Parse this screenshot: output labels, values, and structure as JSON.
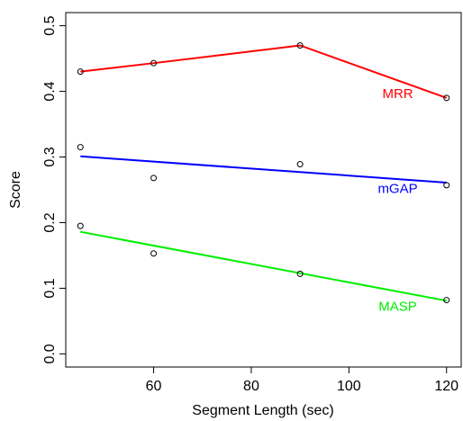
{
  "chart_data": {
    "type": "scatter",
    "title": "",
    "xlabel": "Segment Length (sec)",
    "ylabel": "Score",
    "xlim": [
      42,
      123
    ],
    "ylim": [
      -0.02,
      0.52
    ],
    "x_ticks": [
      60,
      80,
      100,
      120
    ],
    "y_ticks": [
      0.0,
      0.1,
      0.2,
      0.3,
      0.4,
      0.5
    ],
    "x_tick_labels": [
      "60",
      "80",
      "100",
      "120"
    ],
    "y_tick_labels": [
      "0.0",
      "0.1",
      "0.2",
      "0.3",
      "0.4",
      "0.5"
    ],
    "grid": false,
    "series": [
      {
        "name": "MRR",
        "color": "#ff0000",
        "line": "connect",
        "points": [
          {
            "x": 45,
            "y": 0.43
          },
          {
            "x": 60,
            "y": 0.443
          },
          {
            "x": 90,
            "y": 0.47
          },
          {
            "x": 120,
            "y": 0.39
          }
        ],
        "label_at": {
          "x": 110,
          "y": 0.39
        }
      },
      {
        "name": "mGAP",
        "color": "#0000ff",
        "line": "fit",
        "fit": {
          "from": {
            "x": 45,
            "y": 0.301
          },
          "to": {
            "x": 120,
            "y": 0.261
          }
        },
        "points": [
          {
            "x": 45,
            "y": 0.315
          },
          {
            "x": 60,
            "y": 0.268
          },
          {
            "x": 90,
            "y": 0.289
          },
          {
            "x": 120,
            "y": 0.257
          }
        ],
        "label_at": {
          "x": 110,
          "y": 0.245
        }
      },
      {
        "name": "MASP",
        "color": "#00ee00",
        "line": "fit",
        "fit": {
          "from": {
            "x": 45,
            "y": 0.186
          },
          "to": {
            "x": 120,
            "y": 0.081
          }
        },
        "points": [
          {
            "x": 45,
            "y": 0.195
          },
          {
            "x": 60,
            "y": 0.153
          },
          {
            "x": 90,
            "y": 0.122
          },
          {
            "x": 120,
            "y": 0.082
          }
        ],
        "label_at": {
          "x": 110,
          "y": 0.066
        }
      }
    ]
  }
}
